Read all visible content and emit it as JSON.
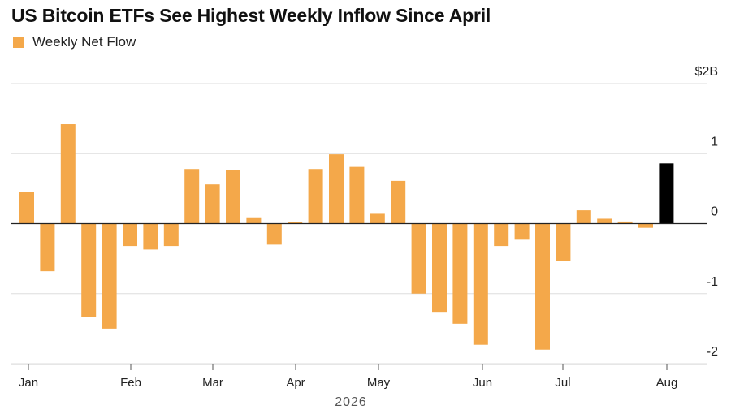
{
  "title": "US Bitcoin ETFs See Highest Weekly Inflow Since April",
  "legend": {
    "label": "Weekly Net Flow",
    "color": "#f4a84a"
  },
  "colors": {
    "bar": "#f4a84a",
    "highlight": "#000000",
    "grid": "#dddddd",
    "zero_line": "#222222"
  },
  "chart_data": {
    "type": "bar",
    "title": "US Bitcoin ETFs See Highest Weekly Inflow Since April",
    "xlabel": "2026",
    "ylabel": "",
    "ylim": [
      -2,
      2
    ],
    "y_ticks": [
      {
        "value": 2,
        "label": "$2B"
      },
      {
        "value": 1,
        "label": "1"
      },
      {
        "value": 0,
        "label": "0"
      },
      {
        "value": -1,
        "label": "-1"
      },
      {
        "value": -2,
        "label": "-2"
      }
    ],
    "x_ticks": [
      "Jan",
      "Feb",
      "Mar",
      "Apr",
      "May",
      "Jun",
      "Jul",
      "Aug"
    ],
    "grid": true,
    "legend_position": "top-left",
    "series": [
      {
        "name": "Weekly Net Flow",
        "values": [
          0.45,
          -0.68,
          1.42,
          -1.33,
          -1.5,
          -0.32,
          -0.37,
          -0.32,
          0.78,
          0.56,
          0.76,
          0.09,
          -0.3,
          0.02,
          0.78,
          0.99,
          0.81,
          0.14,
          0.61,
          -1.0,
          -1.26,
          -1.43,
          -1.73,
          -0.32,
          -0.23,
          -1.8,
          -0.53,
          0.19,
          0.07,
          0.03,
          -0.06,
          0.86
        ],
        "highlight_last": true
      }
    ]
  }
}
